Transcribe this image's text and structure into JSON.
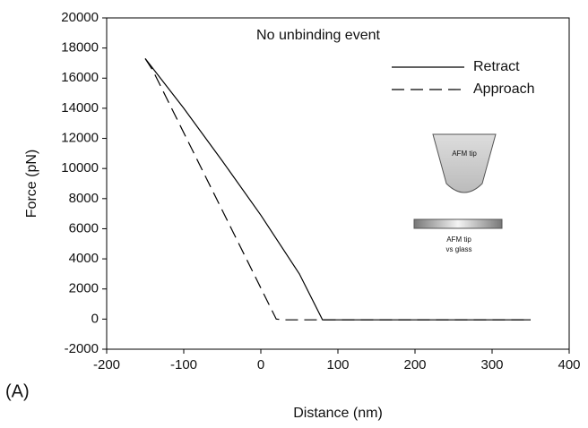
{
  "chart_data": {
    "type": "line",
    "annotations": [
      "No unbinding event",
      "AFM tip",
      "AFM tip",
      "vs glass"
    ],
    "panel_label": "(A)",
    "x_label": "Distance (nm)",
    "y_label": "Force (pN)",
    "xlim": [
      -200,
      400
    ],
    "xticks": [
      -200,
      -100,
      0,
      100,
      200,
      300,
      400
    ],
    "ylim": [
      -2000,
      20000
    ],
    "yticks": [
      -2000,
      0,
      2000,
      4000,
      6000,
      8000,
      10000,
      12000,
      14000,
      16000,
      18000,
      20000
    ],
    "grid": false,
    "legend": "upper right",
    "series": [
      {
        "name": "Retract",
        "color": "#000000",
        "dash": "solid",
        "x": [
          -150,
          -100,
          -50,
          0,
          50,
          80,
          350
        ],
        "values": [
          17300,
          14000,
          10500,
          6900,
          3000,
          -50,
          -50
        ]
      },
      {
        "name": "Approach",
        "color": "#000000",
        "dash": "dashed",
        "x": [
          -150,
          -140,
          20,
          30,
          350
        ],
        "values": [
          17300,
          16500,
          0,
          -50,
          -50
        ]
      }
    ]
  }
}
